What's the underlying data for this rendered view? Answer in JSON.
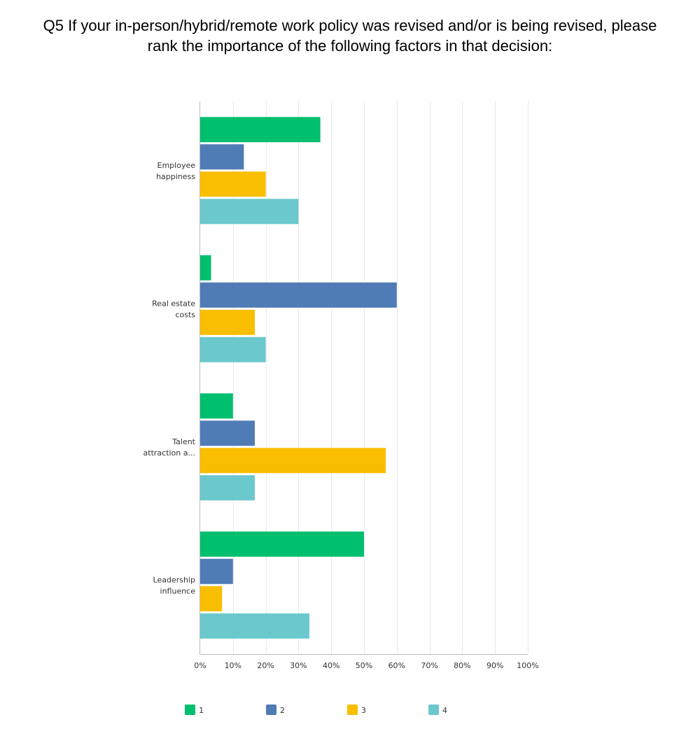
{
  "title_lines": [
    "Q5 If your in-person/hybrid/remote work policy was revised and/or is being revised, please",
    "rank the importance of the following factors in that decision:"
  ],
  "chart_data": {
    "type": "bar",
    "orientation": "horizontal",
    "title": "Q5 If your in-person/hybrid/remote work policy was revised and/or is being revised, please rank the importance of the following factors in that decision:",
    "categories": [
      [
        "Employee",
        "happiness"
      ],
      [
        "Real estate",
        "costs"
      ],
      [
        "Talent",
        "attraction a..."
      ],
      [
        "Leadership",
        "influence"
      ]
    ],
    "series": [
      {
        "name": "1",
        "color": "#00BF6F",
        "values": [
          36.67,
          3.33,
          10.0,
          50.0
        ]
      },
      {
        "name": "2",
        "color": "#507CB6",
        "values": [
          13.33,
          60.0,
          16.67,
          10.0
        ]
      },
      {
        "name": "3",
        "color": "#F9BE00",
        "values": [
          20.0,
          16.67,
          56.67,
          6.67
        ]
      },
      {
        "name": "4",
        "color": "#6BC8CD",
        "values": [
          30.0,
          20.0,
          16.67,
          33.33
        ]
      }
    ],
    "xlim": [
      0,
      100
    ],
    "xticks": [
      "0%",
      "10%",
      "20%",
      "30%",
      "40%",
      "50%",
      "60%",
      "70%",
      "80%",
      "90%",
      "100%"
    ],
    "grid": true,
    "legend": "bottom"
  }
}
